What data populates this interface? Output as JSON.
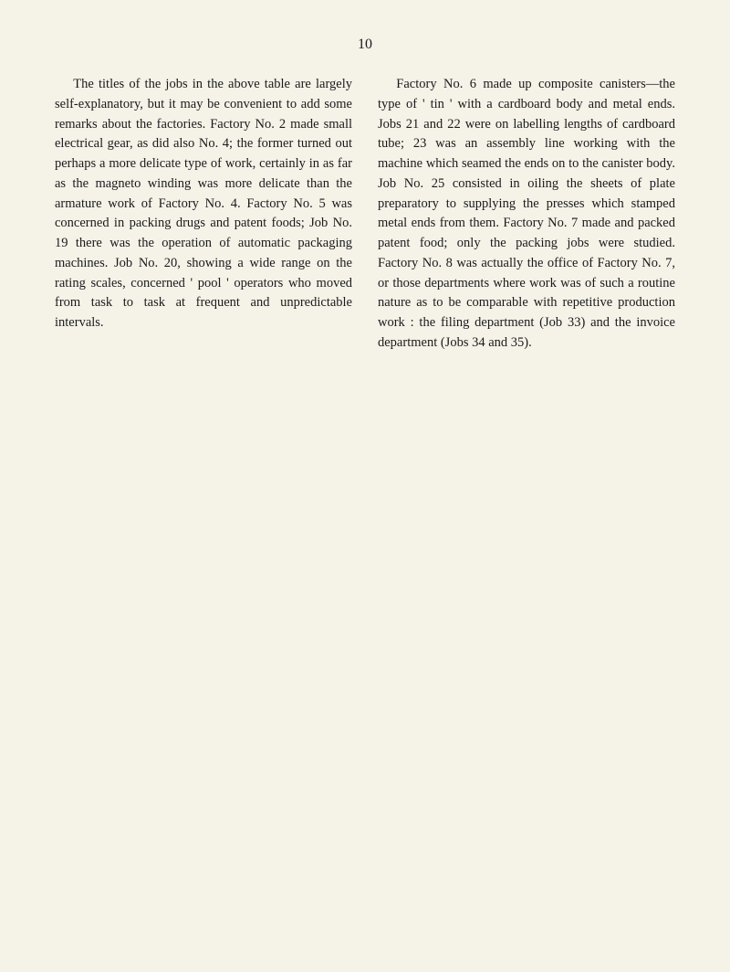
{
  "page_number": "10",
  "left_column": "The titles of the jobs in the above table are largely self-explanatory, but it may be convenient to add some remarks about the factories. Factory No. 2 made small electrical gear, as did also No. 4; the former turned out perhaps a more delicate type of work, certainly in as far as the magneto winding was more delicate than the armature work of Factory No. 4. Factory No. 5 was concerned in packing drugs and patent foods; Job No. 19 there was the operation of automatic packaging machines. Job No. 20, showing a wide range on the rating scales, concerned ' pool ' operators who moved from task to task at frequent and unpredictable intervals.",
  "right_column": "Factory No. 6 made up composite canisters—the type of ' tin ' with a cardboard body and metal ends. Jobs 21 and 22 were on labelling lengths of cardboard tube; 23 was an assembly line working with the machine which seamed the ends on to the canister body. Job No. 25 consisted in oiling the sheets of plate preparatory to supplying the presses which stamped metal ends from them. Factory No. 7 made and packed patent food; only the packing jobs were studied. Factory No. 8 was actually the office of Factory No. 7, or those departments where work was of such a routine nature as to be comparable with repetitive production work : the filing department (Job 33) and the invoice department (Jobs 34 and 35)."
}
